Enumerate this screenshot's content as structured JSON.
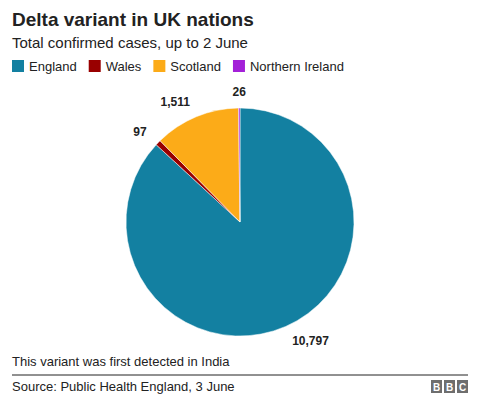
{
  "chart_data": {
    "type": "pie",
    "title": "Delta variant in UK nations",
    "subtitle": "Total confirmed cases, up to 2 June",
    "categories": [
      "England",
      "Wales",
      "Scotland",
      "Northern Ireland"
    ],
    "values": [
      10797,
      97,
      1511,
      26
    ],
    "value_labels": [
      "10,797",
      "97",
      "1,511",
      "26"
    ],
    "colors": [
      "#1380a1",
      "#990000",
      "#fcab18",
      "#a320d8"
    ],
    "data_labels": true,
    "legend": "top",
    "annotations": [
      "This variant was first detected in India"
    ],
    "source": "Source: Public Health England, 3 June",
    "logo": "BBC"
  }
}
